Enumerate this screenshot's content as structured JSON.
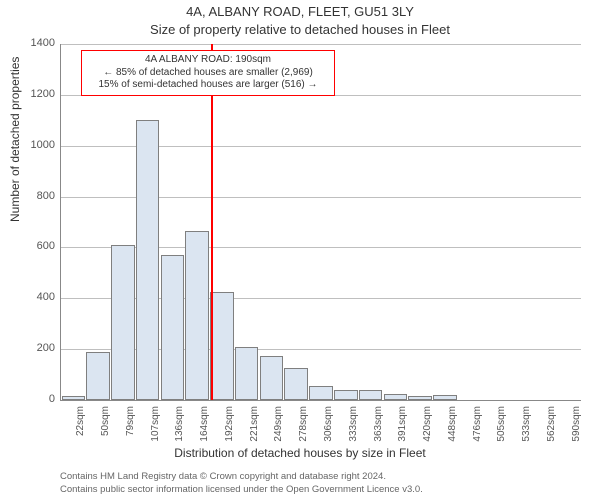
{
  "titles": {
    "line1": "4A, ALBANY ROAD, FLEET, GU51 3LY",
    "line2": "Size of property relative to detached houses in Fleet"
  },
  "axis": {
    "ylabel": "Number of detached properties",
    "xlabel": "Distribution of detached houses by size in Fleet",
    "ymin": 0,
    "ymax": 1400,
    "ytick_step": 200,
    "xticks": [
      "22sqm",
      "50sqm",
      "79sqm",
      "107sqm",
      "136sqm",
      "164sqm",
      "192sqm",
      "221sqm",
      "249sqm",
      "278sqm",
      "306sqm",
      "333sqm",
      "363sqm",
      "391sqm",
      "420sqm",
      "448sqm",
      "476sqm",
      "505sqm",
      "533sqm",
      "562sqm",
      "590sqm"
    ],
    "tick_fontsize": 11,
    "label_fontsize": 12
  },
  "chart": {
    "type": "histogram",
    "bar_fill": "#dbe5f1",
    "bar_border": "#7f7f7f",
    "grid_color": "#bfbfbf",
    "background": "#ffffff",
    "values": [
      15,
      190,
      610,
      1100,
      570,
      665,
      425,
      210,
      175,
      125,
      55,
      40,
      40,
      25,
      15,
      20,
      0,
      0,
      0,
      0,
      0
    ],
    "bar_width_ratio": 0.95
  },
  "marker": {
    "color": "#ff0000",
    "position_index": 6.05,
    "box_border": "#ff0000",
    "box_bg": "#ffffff",
    "lines": {
      "l1": "4A ALBANY ROAD: 190sqm",
      "l2": "← 85% of detached houses are smaller (2,969)",
      "l3": "15% of semi-detached houses are larger (516) →"
    }
  },
  "footer": {
    "l1": "Contains HM Land Registry data © Crown copyright and database right 2024.",
    "l2": "Contains public sector information licensed under the Open Government Licence v3.0."
  }
}
